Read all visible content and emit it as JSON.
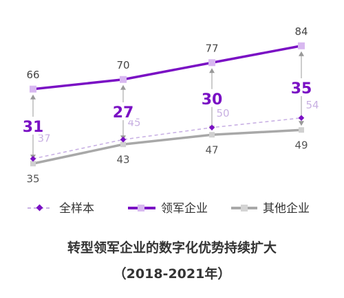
{
  "chart_data": {
    "type": "line",
    "title": "转型领军企业的数字化优势持续扩大",
    "subtitle": "（2018-2021年）",
    "colors": {
      "leader": "#7a10c4",
      "all": "#c9b1e4",
      "other": "#a8a8a8",
      "gap": "#7a10c4",
      "label_gray": "#555555",
      "label_light_purple": "#c8b0e2"
    },
    "series": [
      {
        "key": "all",
        "name": "全样本",
        "values": [
          37,
          45,
          50,
          54
        ],
        "labels": [
          "37",
          "45",
          "50",
          "54"
        ]
      },
      {
        "key": "leader",
        "name": "领军企业",
        "values": [
          66,
          70,
          77,
          84
        ],
        "labels": [
          "66",
          "70",
          "77",
          "84"
        ]
      },
      {
        "key": "other",
        "name": "其他企业",
        "values": [
          35,
          43,
          47,
          49
        ],
        "labels": [
          "35",
          "43",
          "47",
          "49"
        ]
      }
    ],
    "gaps": [
      "31",
      "27",
      "30",
      "35"
    ]
  }
}
